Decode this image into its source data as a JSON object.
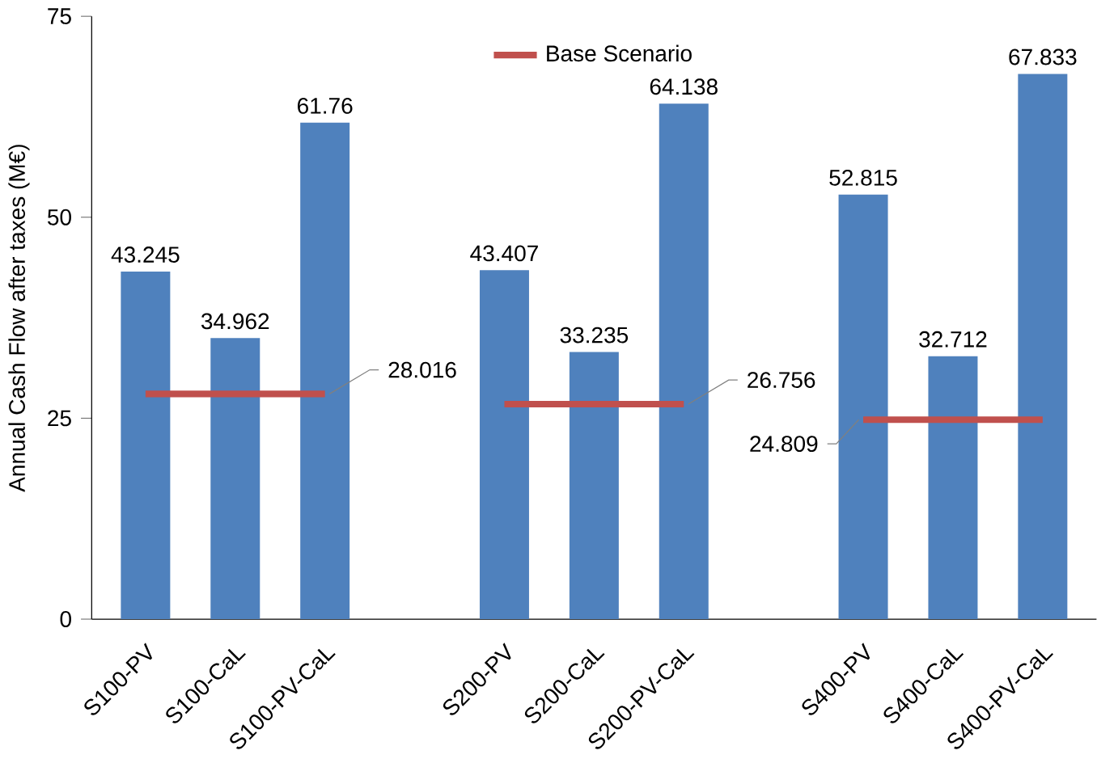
{
  "chart_data": {
    "type": "bar",
    "ylabel": "Annual Cash Flow after taxes (M€)",
    "categories": [
      "S100-PV",
      "S100-CaL",
      "S100-PV-CaL",
      null,
      "S200-PV",
      "S200-CaL",
      "S200-PV-CaL",
      null,
      "S400-PV",
      "S400-CaL",
      "S400-PV-CaL"
    ],
    "series": [
      {
        "color": "#4f81bd",
        "values": [
          43.245,
          34.962,
          61.76,
          null,
          43.407,
          33.235,
          64.138,
          null,
          52.815,
          32.712,
          67.833
        ],
        "value_labels": [
          "43.245",
          "34.962",
          "61.76",
          null,
          "43.407",
          "33.235",
          "64.138",
          null,
          "52.815",
          "32.712",
          "67.833"
        ]
      },
      {
        "type": "line",
        "name": "Base Scenario",
        "color": "#c0504d",
        "values": [
          28.016,
          28.016,
          28.016,
          null,
          26.756,
          26.756,
          26.756,
          null,
          24.809,
          24.809,
          24.809
        ],
        "value_labels": [
          null,
          null,
          "28.016",
          null,
          null,
          null,
          "26.756",
          null,
          "24.809",
          null,
          null
        ]
      }
    ],
    "ylim": [
      0,
      75
    ],
    "yticks": [
      0,
      25,
      50,
      75
    ],
    "legend": "top",
    "marker": "none"
  }
}
